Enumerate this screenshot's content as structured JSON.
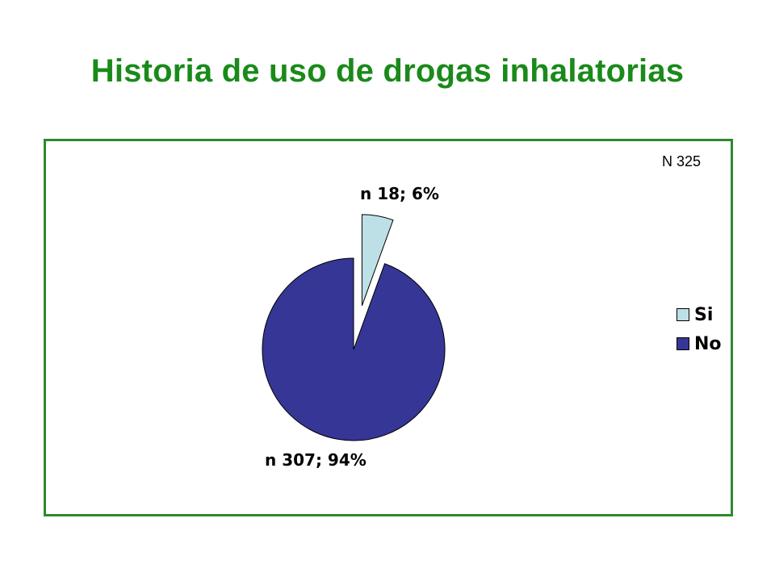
{
  "title": "Historia de uso de drogas inhalatorias",
  "colors": {
    "title": "#1a8a1a",
    "frame": "#2d8a2d"
  },
  "chart_data": {
    "type": "pie",
    "total_label": "N 325",
    "slices": [
      {
        "name": "Si",
        "n": 18,
        "percent": 6,
        "label": "n 18; 6%",
        "color": "#bde0e6",
        "exploded": true
      },
      {
        "name": "No",
        "n": 307,
        "percent": 94,
        "label": "n 307; 94%",
        "color": "#363697",
        "exploded": false
      }
    ],
    "legend": {
      "position": "right",
      "entries": [
        "Si",
        "No"
      ]
    }
  }
}
